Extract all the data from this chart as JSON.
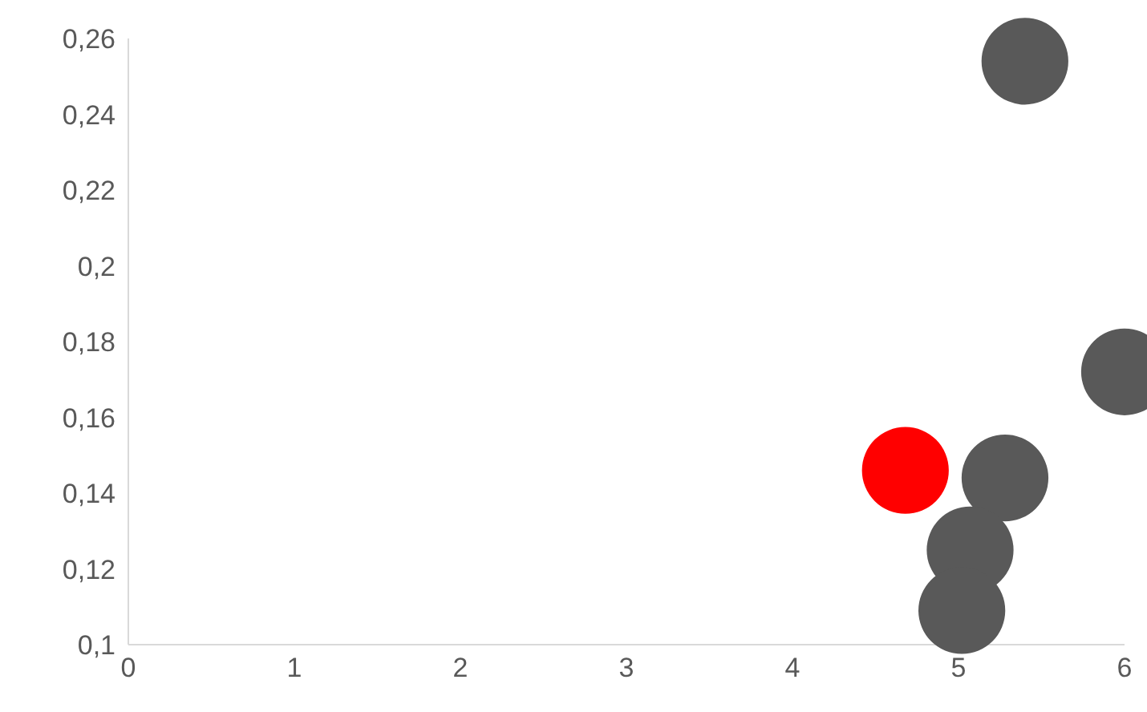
{
  "chart_data": {
    "type": "bubble",
    "x": [
      4.68,
      5.4,
      6,
      5.28,
      5.07,
      5.02
    ],
    "values": [
      0.146,
      0.254,
      0.172,
      0.144,
      0.125,
      0.109
    ],
    "sizes": [
      1,
      1,
      1,
      1,
      1,
      1
    ],
    "colors": [
      "#ff0000",
      "#595959",
      "#595959",
      "#595959",
      "#595959",
      "#595959"
    ],
    "xlim": [
      0,
      6
    ],
    "xticks": [
      0,
      1,
      2,
      3,
      4,
      5,
      6
    ],
    "ylim": [
      0.1,
      0.26
    ],
    "yticks": [
      {
        "value": 0.1,
        "label": "0,1"
      },
      {
        "value": 0.12,
        "label": "0,12"
      },
      {
        "value": 0.14,
        "label": "0,14"
      },
      {
        "value": 0.16,
        "label": "0,16"
      },
      {
        "value": 0.18,
        "label": "0,18"
      },
      {
        "value": 0.2,
        "label": "0,2"
      },
      {
        "value": 0.22,
        "label": "0,22"
      },
      {
        "value": 0.24,
        "label": "0,24"
      },
      {
        "value": 0.26,
        "label": "0,26"
      }
    ],
    "grid": false
  }
}
